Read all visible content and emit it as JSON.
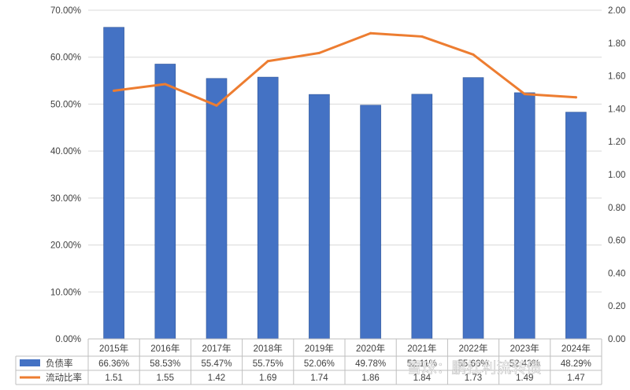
{
  "chart_data": {
    "type": "bar",
    "categories": [
      "2015年",
      "2016年",
      "2017年",
      "2018年",
      "2019年",
      "2020年",
      "2021年",
      "2022年",
      "2023年",
      "2024年"
    ],
    "series": [
      {
        "name": "负债率",
        "kind": "bar",
        "axis": "left",
        "values": [
          66.36,
          58.53,
          55.47,
          55.75,
          52.06,
          49.78,
          52.11,
          55.66,
          52.43,
          48.29
        ],
        "labels": [
          "66.36%",
          "58.53%",
          "55.47%",
          "55.75%",
          "52.06%",
          "49.78%",
          "52.11%",
          "55.66%",
          "52.43%",
          "48.29%"
        ],
        "color": "#4472C4"
      },
      {
        "name": "流动比率",
        "kind": "line",
        "axis": "right",
        "values": [
          1.51,
          1.55,
          1.42,
          1.69,
          1.74,
          1.86,
          1.84,
          1.73,
          1.49,
          1.47
        ],
        "labels": [
          "1.51",
          "1.55",
          "1.42",
          "1.69",
          "1.74",
          "1.86",
          "1.84",
          "1.73",
          "1.49",
          "1.47"
        ],
        "color": "#ED7D31"
      }
    ],
    "y_left": {
      "min": 0,
      "max": 70,
      "ticks": [
        "0.00%",
        "10.00%",
        "20.00%",
        "30.00%",
        "40.00%",
        "50.00%",
        "60.00%",
        "70.00%"
      ]
    },
    "y_right": {
      "min": 0,
      "max": 2,
      "ticks": [
        "0.00",
        "0.20",
        "0.40",
        "0.60",
        "0.80",
        "1.00",
        "1.20",
        "1.40",
        "1.60",
        "1.80",
        "2.00"
      ]
    },
    "grid": true,
    "legend": "data-table"
  },
  "watermark": "雪球：鹏扛利流转债"
}
